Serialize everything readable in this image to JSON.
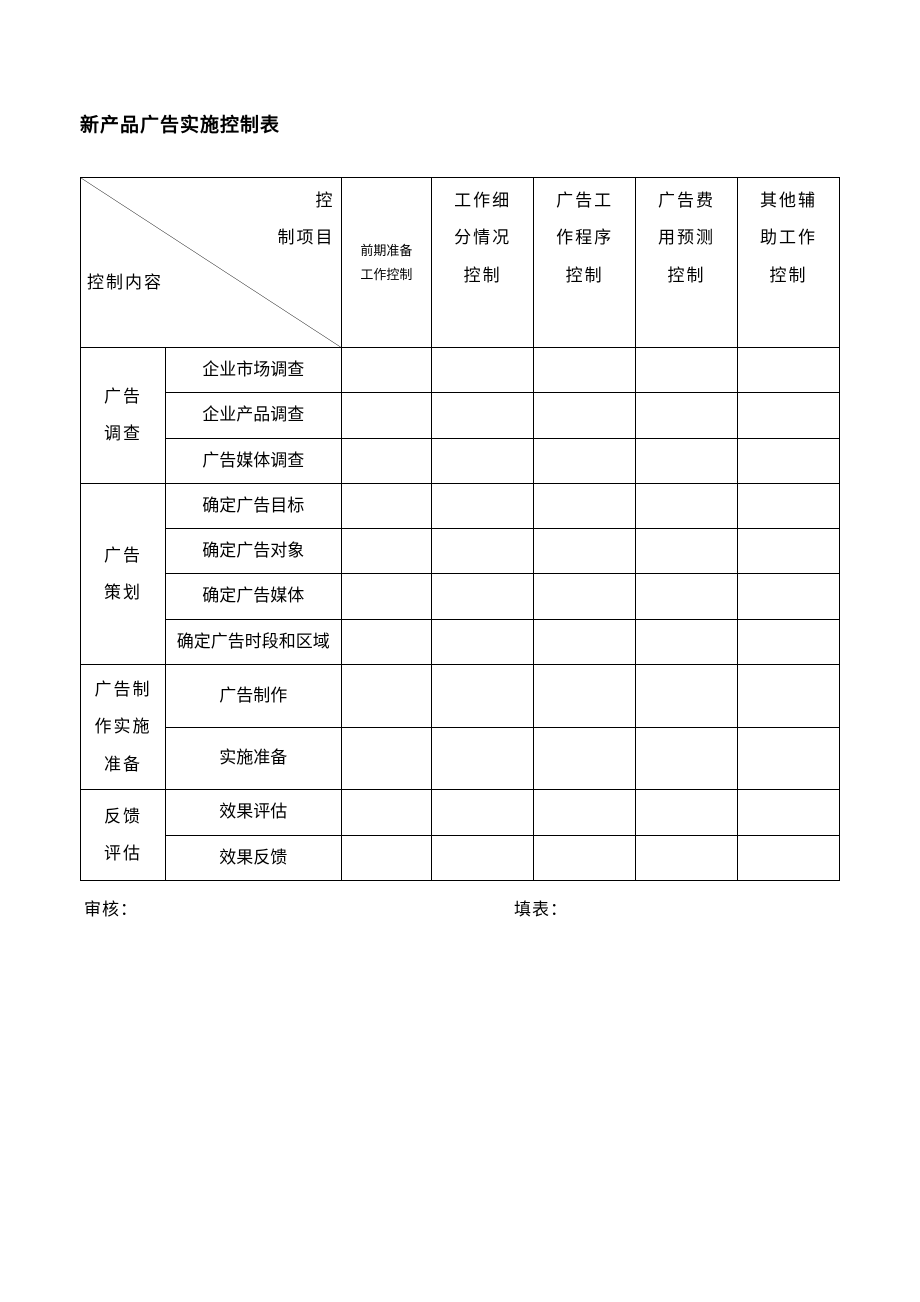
{
  "title": "新产品广告实施控制表",
  "header": {
    "diag_top": "控制项目",
    "diag_bottom": "控制内容",
    "cols": [
      "前期准备工作控制",
      "工作细分情况控制",
      "广告工作程序控制",
      "广告费用预测控制",
      "其他辅助工作控制"
    ]
  },
  "sections": [
    {
      "label": "广告调查",
      "items": [
        "企业市场调查",
        "企业产品调查",
        "广告媒体调查"
      ]
    },
    {
      "label": "广告策划",
      "items": [
        "确定广告目标",
        "确定广告对象",
        "确定广告媒体",
        "确定广告时段和区域"
      ]
    },
    {
      "label": "广告制作实施准备",
      "items": [
        "广告制作",
        "实施准备"
      ]
    },
    {
      "label": "反馈评估",
      "items": [
        "效果评估",
        "效果反馈"
      ]
    }
  ],
  "footer": {
    "left": "审核：",
    "right": "填表："
  },
  "style": {
    "background": "#ffffff",
    "border_color": "#000000",
    "title_fontsize": 19,
    "body_fontsize": 17,
    "small_fontsize": 13
  }
}
